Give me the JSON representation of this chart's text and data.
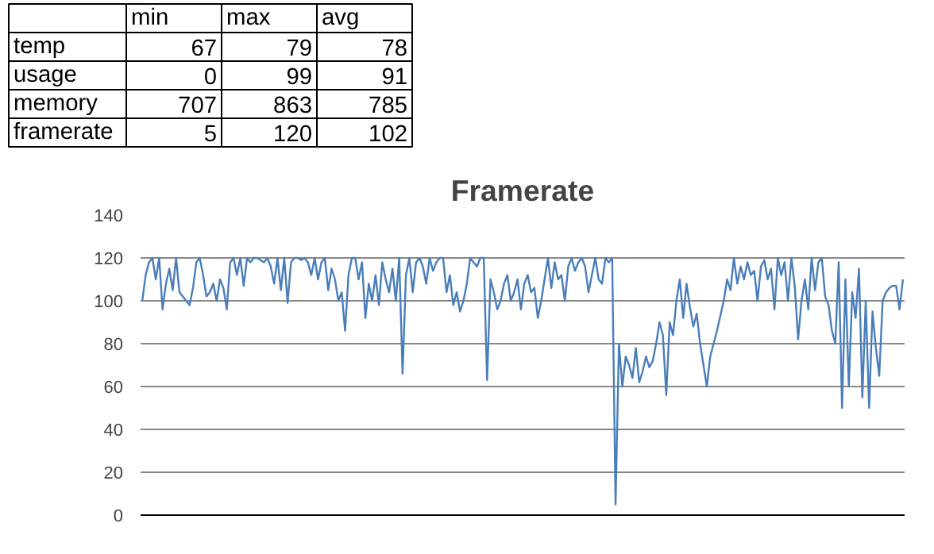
{
  "chart_data": [
    {
      "type": "other",
      "categories": [
        "temp",
        "usage",
        "memory",
        "framerate"
      ],
      "series": [
        {
          "name": "min",
          "values": [
            67,
            0,
            707,
            5
          ]
        },
        {
          "name": "max",
          "values": [
            79,
            99,
            863,
            120
          ]
        },
        {
          "name": "avg",
          "values": [
            78,
            91,
            785,
            102
          ]
        }
      ],
      "data_labels": true
    },
    {
      "type": "line",
      "title": "Framerate",
      "categories": [
        null,
        null,
        null,
        null,
        null,
        null,
        null,
        null,
        null,
        null,
        null,
        null,
        null,
        null,
        null,
        null,
        null,
        null,
        null,
        null,
        null,
        null,
        null,
        null,
        null,
        null,
        null,
        null,
        null,
        null,
        null,
        null,
        null,
        null,
        null,
        null,
        null,
        null,
        null,
        null,
        null,
        null,
        null,
        null,
        null,
        null,
        null,
        null,
        null,
        null,
        null,
        null,
        null,
        null,
        null,
        null,
        null,
        null,
        null,
        null,
        null,
        null,
        null,
        null,
        null,
        null,
        null,
        null,
        null,
        null,
        null,
        null,
        null,
        null,
        null,
        null,
        null,
        null,
        null,
        null,
        null,
        null,
        null,
        null,
        null,
        null,
        null,
        null,
        null,
        null,
        null,
        null,
        null,
        null,
        null,
        null,
        null,
        null,
        null,
        null,
        null,
        null,
        null,
        null,
        null,
        null,
        null,
        null,
        null,
        null,
        null,
        null,
        null,
        null,
        null,
        null,
        null,
        null,
        null,
        null,
        null,
        null,
        null,
        null,
        null,
        null,
        null,
        null,
        null,
        null,
        null,
        null,
        null,
        null,
        null,
        null,
        null,
        null,
        null,
        null,
        null,
        null,
        null,
        null,
        null,
        null,
        null,
        null,
        null,
        null,
        null,
        null,
        null,
        null,
        null,
        null,
        null,
        null,
        null,
        null,
        null,
        null,
        null,
        null,
        null,
        null,
        null,
        null,
        null,
        null,
        null,
        null,
        null,
        null,
        null,
        null,
        null,
        null,
        null,
        null,
        null,
        null,
        null,
        null,
        null,
        null,
        null,
        null,
        null,
        null,
        null,
        null,
        null,
        null,
        null,
        null,
        null,
        null,
        null,
        null,
        null,
        null,
        null,
        null,
        null,
        null,
        null,
        null,
        null,
        null,
        null,
        null,
        null,
        null,
        null,
        null,
        null,
        null,
        null,
        null,
        null,
        null,
        null,
        null,
        null,
        null
      ],
      "series": [
        {
          "color": "#4a7ebb",
          "values": [
            100,
            112,
            118,
            120,
            110,
            120,
            96,
            108,
            115,
            105,
            120,
            104,
            102,
            100,
            98,
            106,
            118,
            120,
            112,
            102,
            104,
            108,
            100,
            110,
            106,
            96,
            118,
            120,
            112,
            120,
            107,
            120,
            118,
            120,
            120,
            119,
            118,
            120,
            116,
            108,
            120,
            105,
            120,
            99,
            118,
            120,
            120,
            119,
            120,
            118,
            112,
            120,
            110,
            118,
            120,
            105,
            115,
            110,
            100,
            104,
            86,
            112,
            120,
            120,
            110,
            118,
            92,
            108,
            100,
            112,
            98,
            118,
            110,
            104,
            115,
            100,
            120,
            66,
            112,
            120,
            104,
            118,
            120,
            116,
            108,
            120,
            114,
            118,
            120,
            120,
            104,
            112,
            98,
            104,
            95,
            100,
            108,
            120,
            118,
            116,
            120,
            120,
            63,
            110,
            104,
            96,
            100,
            108,
            112,
            100,
            104,
            110,
            96,
            108,
            112,
            104,
            106,
            92,
            100,
            110,
            120,
            106,
            118,
            110,
            112,
            100,
            116,
            120,
            114,
            118,
            120,
            116,
            104,
            112,
            120,
            110,
            108,
            120,
            118,
            120,
            5,
            80,
            60,
            74,
            70,
            64,
            78,
            62,
            67,
            74,
            69,
            72,
            80,
            90,
            84,
            56,
            90,
            84,
            100,
            110,
            92,
            108,
            97,
            88,
            94,
            80,
            70,
            60,
            74,
            80,
            86,
            93,
            100,
            110,
            105,
            120,
            108,
            116,
            110,
            118,
            112,
            114,
            100,
            116,
            119,
            110,
            115,
            96,
            120,
            112,
            118,
            100,
            120,
            107,
            82,
            100,
            110,
            96,
            120,
            105,
            118,
            120,
            102,
            98,
            86,
            80,
            118,
            50,
            110,
            60,
            104,
            92,
            115,
            55,
            100,
            50,
            95,
            78,
            65,
            100,
            104,
            106,
            107,
            107,
            96,
            110
          ]
        }
      ],
      "ylim": [
        0,
        140
      ],
      "yticks": [
        0,
        20,
        40,
        60,
        80,
        100,
        120,
        140
      ],
      "grid": "y",
      "line_style": "solid",
      "tick_labels": "y"
    }
  ]
}
